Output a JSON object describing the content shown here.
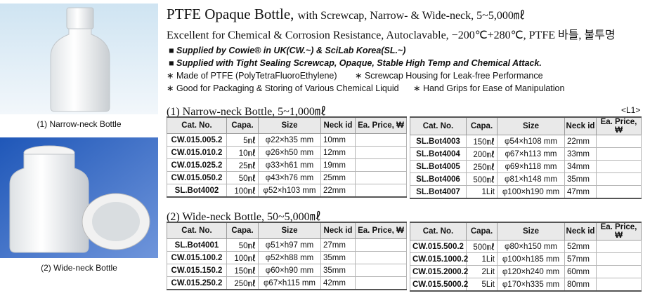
{
  "header": {
    "title": "PTFE Opaque Bottle,",
    "title_detail": "with Screwcap, Narrow- & Wide-neck, 5~5,000㎖",
    "subtitle": "Excellent for Chemical & Corrosion Resistance, Autoclavable, −200℃+280℃, PTFE 바틀, 불투명"
  },
  "bullets": [
    "Supplied by Cowie® in UK(CW.~) & SciLab Korea(SL.~)",
    "Supplied with Tight Sealing Screwcap, Opaque, Stable High Temp and Chemical Attack."
  ],
  "features": [
    "Made of PTFE (PolyTetraFluoroEthylene)",
    "Screwcap Housing for Leak-free Performance",
    "Good for Packaging & Storing of Various Chemical Liquid",
    "Hand Grips for Ease of Manipulation"
  ],
  "images": [
    {
      "caption": "(1) Narrow-neck Bottle"
    },
    {
      "caption": "(2) Wide-neck Bottle"
    }
  ],
  "table_columns": [
    "Cat. No.",
    "Capa.",
    "Size",
    "Neck id",
    "Ea. Price, ₩"
  ],
  "sections": [
    {
      "heading": "(1) Narrow-neck Bottle, 5~1,000㎖",
      "tag": "<L1>",
      "tables": [
        {
          "rows": [
            [
              "CW.015.005.2",
              "5㎖",
              "φ22×h35 mm",
              "10mm"
            ],
            [
              "CW.015.010.2",
              "10㎖",
              "φ26×h50 mm",
              "12mm"
            ],
            [
              "CW.015.025.2",
              "25㎖",
              "φ33×h61 mm",
              "19mm"
            ],
            [
              "CW.015.050.2",
              "50㎖",
              "φ43×h76 mm",
              "25mm"
            ],
            [
              "SL.Bot4002",
              "100㎖",
              "φ52×h103 mm",
              "22mm"
            ]
          ]
        },
        {
          "rows": [
            [
              "SL.Bot4003",
              "150㎖",
              "φ54×h108 mm",
              "22mm"
            ],
            [
              "SL.Bot4004",
              "200㎖",
              "φ67×h113 mm",
              "33mm"
            ],
            [
              "SL.Bot4005",
              "250㎖",
              "φ69×h118 mm",
              "34mm"
            ],
            [
              "SL.Bot4006",
              "500㎖",
              "φ81×h148 mm",
              "35mm"
            ],
            [
              "SL.Bot4007",
              "1Lit",
              "φ100×h190 mm",
              "47mm"
            ]
          ]
        }
      ]
    },
    {
      "heading": "(2) Wide-neck Bottle, 50~5,000㎖",
      "tables": [
        {
          "rows": [
            [
              "SL.Bot4001",
              "50㎖",
              "φ51×h97 mm",
              "27mm"
            ],
            [
              "CW.015.100.2",
              "100㎖",
              "φ52×h88 mm",
              "35mm"
            ],
            [
              "CW.015.150.2",
              "150㎖",
              "φ60×h90 mm",
              "35mm"
            ],
            [
              "CW.015.250.2",
              "250㎖",
              "φ67×h115 mm",
              "42mm"
            ]
          ]
        },
        {
          "rows": [
            [
              "CW.015.500.2",
              "500㎖",
              "φ80×h150 mm",
              "52mm"
            ],
            [
              "CW.015.1000.2",
              "1Lit",
              "φ100×h185 mm",
              "57mm"
            ],
            [
              "CW.015.2000.2",
              "2Lit",
              "φ120×h240 mm",
              "60mm"
            ],
            [
              "CW.015.5000.2",
              "5Lit",
              "φ170×h335 mm",
              "80mm"
            ]
          ]
        }
      ]
    }
  ]
}
